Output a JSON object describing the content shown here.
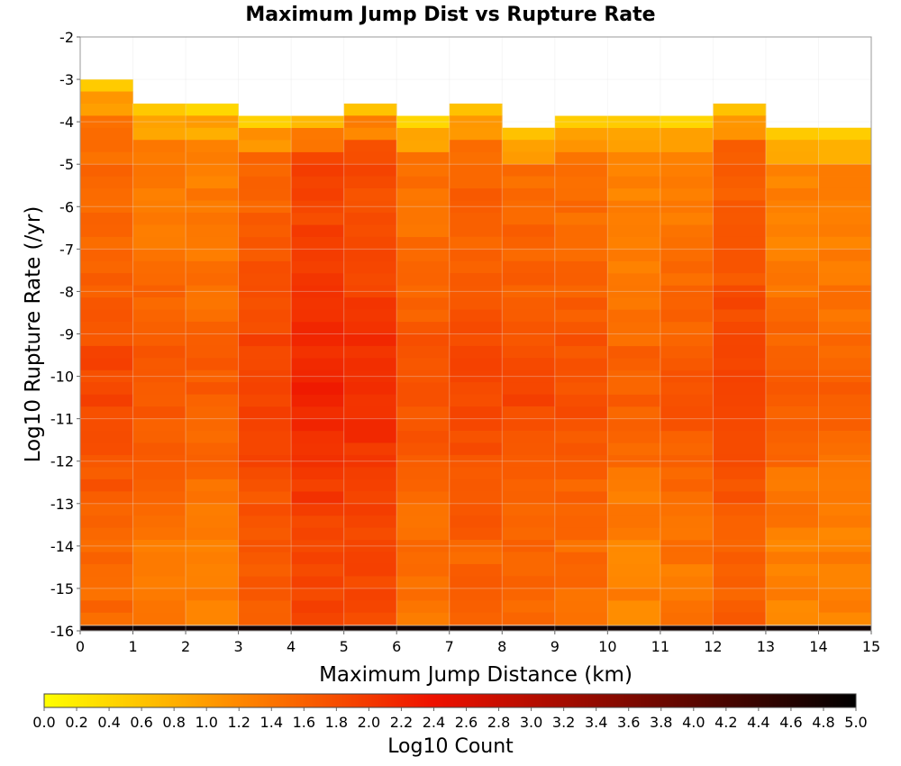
{
  "chart_data": {
    "type": "heatmap",
    "title": "Maximum Jump Dist vs Rupture Rate",
    "xlabel": "Maximum Jump Distance (km)",
    "ylabel": "Log10 Rupture Rate (/yr)",
    "xlim": [
      0,
      15
    ],
    "ylim": [
      -16,
      -2
    ],
    "x_ticks": [
      "0",
      "1",
      "2",
      "3",
      "4",
      "5",
      "6",
      "7",
      "8",
      "9",
      "10",
      "11",
      "12",
      "13",
      "14",
      "15"
    ],
    "y_ticks": [
      "-2",
      "-3",
      "-4",
      "-5",
      "-6",
      "-7",
      "-8",
      "-9",
      "-10",
      "-11",
      "-12",
      "-13",
      "-14",
      "-15",
      "-16"
    ],
    "x_bin_width_km": 1,
    "y_bin_width_log10": 0.2857,
    "grid": true,
    "colorbar": {
      "label": "Log10 Count",
      "min": 0.0,
      "max": 5.0,
      "ticks": [
        "0.0",
        "0.2",
        "0.4",
        "0.6",
        "0.8",
        "1.0",
        "1.2",
        "1.4",
        "1.6",
        "1.8",
        "2.0",
        "2.2",
        "2.4",
        "2.6",
        "2.8",
        "3.0",
        "3.2",
        "3.4",
        "3.6",
        "3.8",
        "4.0",
        "4.2",
        "4.4",
        "4.6",
        "4.8",
        "5.0"
      ],
      "colors": [
        "#ffff00",
        "#ff8800",
        "#ee1100",
        "#000000"
      ],
      "stops": [
        0.0,
        1.2,
        2.4,
        5.0
      ]
    },
    "column_top_log10_rate": [
      -3.0,
      -3.57,
      -3.57,
      -3.86,
      -3.86,
      -3.57,
      -3.86,
      -3.57,
      -4.14,
      -3.86,
      -3.86,
      -3.86,
      -3.57,
      -4.14,
      -4.14
    ],
    "column_base_log10_count": [
      1.5,
      1.35,
      1.3,
      1.6,
      1.85,
      1.8,
      1.4,
      1.55,
      1.5,
      1.45,
      1.25,
      1.35,
      1.6,
      1.25,
      1.25
    ],
    "bottom_row_log10_count": 4.8,
    "cells_note_visible_only": ""
  }
}
